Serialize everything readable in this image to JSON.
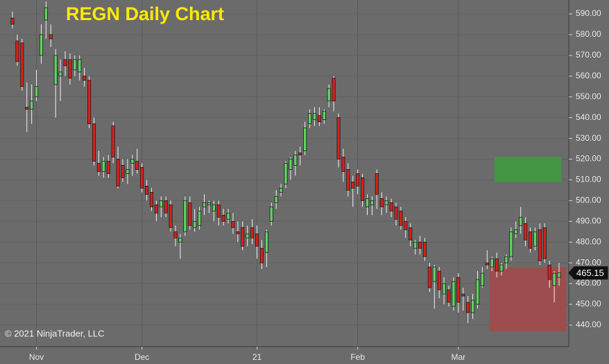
{
  "chart_data": {
    "type": "candlestick",
    "title": "REGN Daily Chart",
    "copyright": "© 2021 NinjaTrader, LLC",
    "last_price": 465.15,
    "categories": [
      null,
      null,
      null,
      null,
      null,
      "Nov",
      null,
      null,
      null,
      null,
      null,
      null,
      null,
      null,
      null,
      null,
      null,
      null,
      null,
      null,
      null,
      null,
      null,
      null,
      null,
      null,
      null,
      "Dec",
      null,
      null,
      null,
      null,
      null,
      null,
      null,
      null,
      null,
      null,
      null,
      null,
      null,
      null,
      null,
      null,
      null,
      null,
      null,
      null,
      null,
      null,
      null,
      "21",
      null,
      null,
      null,
      null,
      null,
      null,
      null,
      null,
      null,
      null,
      null,
      null,
      null,
      null,
      null,
      null,
      null,
      null,
      null,
      null,
      "Feb",
      null,
      null,
      null,
      null,
      null,
      null,
      null,
      null,
      null,
      null,
      null,
      null,
      null,
      null,
      null,
      null,
      null,
      null,
      null,
      null,
      "Mar",
      null,
      null,
      null,
      null,
      null,
      null,
      null,
      null,
      null,
      null,
      null,
      null,
      null,
      null,
      null,
      null,
      null,
      null,
      null,
      null,
      null
    ],
    "open": [
      588,
      577,
      576,
      545,
      544,
      550,
      570,
      587,
      580,
      556,
      560,
      568,
      568,
      563,
      562,
      560,
      558,
      537,
      518,
      514,
      519,
      536,
      520,
      517,
      513,
      518,
      519,
      516,
      507,
      504,
      498,
      497,
      500,
      498,
      485,
      480,
      485,
      499,
      487,
      488,
      497,
      498,
      495,
      498,
      493,
      491,
      490,
      485,
      487,
      482,
      487,
      484,
      477,
      475,
      490,
      499,
      504,
      508,
      515,
      517,
      523,
      524,
      537,
      539,
      541,
      539,
      548,
      559,
      540,
      521,
      515,
      509,
      513,
      511,
      497,
      498,
      513,
      501,
      498,
      499,
      497,
      495,
      490,
      487,
      477,
      480,
      480,
      468,
      461,
      466,
      455,
      457,
      449,
      463,
      455,
      451,
      446,
      450,
      459,
      470,
      468,
      472,
      466,
      470,
      473,
      484,
      488,
      489,
      485,
      478,
      486,
      487,
      469,
      459,
      463
    ],
    "high": [
      591,
      580,
      578,
      557,
      556,
      563,
      585,
      596,
      585,
      573,
      568,
      572,
      571,
      570,
      570,
      564,
      560,
      540,
      524,
      521,
      522,
      538,
      526,
      520,
      520,
      522,
      525,
      518,
      510,
      506,
      500,
      502,
      502,
      500,
      488,
      484,
      502,
      502,
      496,
      497,
      503,
      500,
      500,
      500,
      496,
      496,
      494,
      490,
      490,
      488,
      491,
      488,
      481,
      486,
      499,
      505,
      508,
      519,
      521,
      524,
      526,
      538,
      544,
      545,
      545,
      544,
      556,
      560,
      542,
      525,
      518,
      512,
      515,
      513,
      503,
      502,
      515,
      504,
      502,
      501,
      499,
      497,
      492,
      489,
      481,
      483,
      482,
      470,
      469,
      468,
      463,
      459,
      463,
      465,
      458,
      454,
      455,
      466,
      468,
      476,
      473,
      475,
      470,
      474,
      487,
      490,
      497,
      492,
      487,
      487,
      489,
      489,
      471,
      466,
      470
    ],
    "low": [
      583,
      565,
      553,
      533,
      537,
      548,
      566,
      578,
      574,
      540,
      548,
      560,
      556,
      560,
      558,
      555,
      535,
      517,
      512,
      511,
      511,
      518,
      506,
      509,
      508,
      512,
      513,
      504,
      500,
      495,
      490,
      492,
      492,
      485,
      478,
      472,
      483,
      486,
      485,
      486,
      493,
      494,
      490,
      488,
      488,
      489,
      484,
      480,
      476,
      478,
      479,
      472,
      467,
      468,
      488,
      496,
      502,
      506,
      510,
      512,
      517,
      522,
      535,
      536,
      536,
      537,
      545,
      543,
      516,
      509,
      502,
      497,
      503,
      497,
      493,
      493,
      496,
      493,
      494,
      492,
      488,
      486,
      482,
      478,
      474,
      474,
      471,
      456,
      448,
      453,
      450,
      449,
      447,
      446,
      447,
      441,
      443,
      448,
      458,
      467,
      466,
      463,
      464,
      467,
      471,
      482,
      484,
      478,
      475,
      476,
      469,
      470,
      458,
      451,
      459
    ],
    "close": [
      585,
      567,
      555,
      544,
      548,
      555,
      580,
      593,
      578,
      570,
      562,
      565,
      559,
      568,
      568,
      558,
      537,
      519,
      514,
      519,
      513,
      521,
      507,
      511,
      515,
      520,
      515,
      506,
      503,
      497,
      494,
      500,
      494,
      487,
      482,
      482,
      500,
      488,
      490,
      495,
      499,
      499,
      498,
      492,
      490,
      494,
      487,
      484,
      478,
      484,
      482,
      478,
      470,
      485,
      497,
      502,
      506,
      518,
      520,
      522,
      522,
      535,
      542,
      542,
      538,
      543,
      554,
      548,
      520,
      514,
      505,
      506,
      507,
      500,
      501,
      500,
      503,
      497,
      500,
      495,
      491,
      488,
      486,
      481,
      480,
      477,
      473,
      458,
      468,
      457,
      460,
      451,
      461,
      451,
      454,
      446,
      452,
      462,
      465,
      469,
      472,
      466,
      469,
      473,
      485,
      486,
      492,
      481,
      477,
      485,
      471,
      472,
      462,
      465,
      465.15
    ],
    "up_color": "#5fd35f",
    "down_color": "#d8201c",
    "zones": [
      {
        "from": 101,
        "to": 114,
        "top": 521,
        "bottom": 509,
        "color": "#3f9a40"
      },
      {
        "from": 100,
        "to": 115,
        "top": 468,
        "bottom": 437,
        "color": "#a44a4c"
      }
    ],
    "ylim": [
      429.6,
      596.7
    ],
    "yticks": [
      {
        "value": 440,
        "label": "440.00"
      },
      {
        "value": 450,
        "label": "450.00"
      },
      {
        "value": 460,
        "label": "460.00"
      },
      {
        "value": 470,
        "label": "470.00"
      },
      {
        "value": 480,
        "label": "480.00"
      },
      {
        "value": 490,
        "label": "490.00"
      },
      {
        "value": 500,
        "label": "500.00"
      },
      {
        "value": 510,
        "label": "510.00"
      },
      {
        "value": 520,
        "label": "520.00"
      },
      {
        "value": 530,
        "label": "530.00"
      },
      {
        "value": 540,
        "label": "540.00"
      },
      {
        "value": 550,
        "label": "550.00"
      },
      {
        "value": 560,
        "label": "560.00"
      },
      {
        "value": 570,
        "label": "570.00"
      },
      {
        "value": 580,
        "label": "580.00"
      },
      {
        "value": 590,
        "label": "590.00"
      }
    ],
    "grid": true
  }
}
